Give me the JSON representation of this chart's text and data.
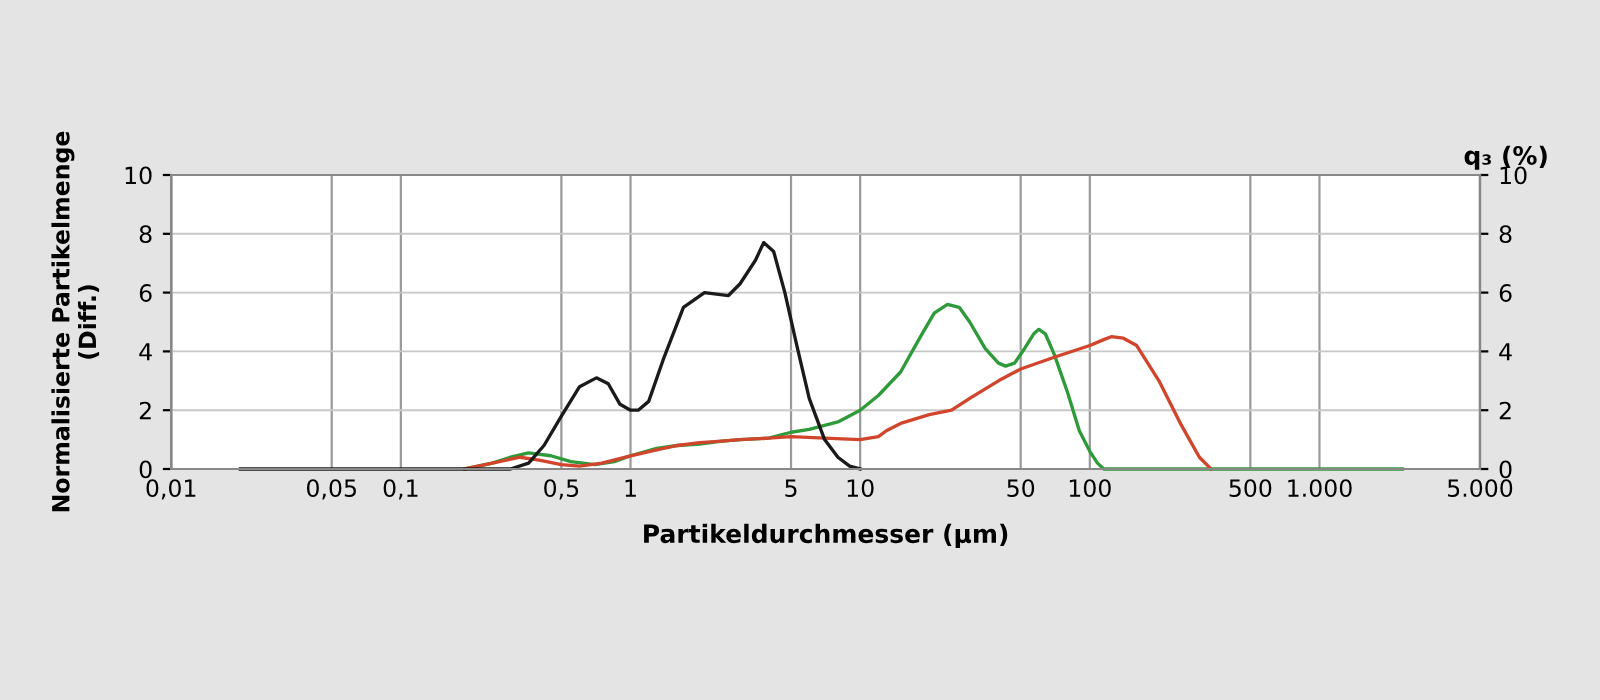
{
  "chart_data": {
    "type": "line",
    "xlabel": "Partikeldurchmesser (µm)",
    "ylabel": "Normalisierte Partikelmenge\n(Diff.)",
    "y2label": "q₃ (%)",
    "log": "x",
    "grid": true,
    "line_style": "solid",
    "xlim": [
      0.01,
      5000
    ],
    "xticks": [
      {
        "value": 0.01,
        "label": "0,01"
      },
      {
        "value": 0.05,
        "label": "0,05"
      },
      {
        "value": 0.1,
        "label": "0,1"
      },
      {
        "value": 0.5,
        "label": "0,5"
      },
      1,
      5,
      10,
      50,
      100,
      500,
      {
        "value": 1000,
        "label": "1.000"
      },
      {
        "value": 5000,
        "label": "5.000"
      }
    ],
    "ylim": [
      0,
      10
    ],
    "yticks": [
      0,
      2,
      4,
      6,
      8,
      10
    ],
    "y2lim": [
      0,
      10
    ],
    "y2ticks": [
      0,
      2,
      4,
      6,
      8,
      10
    ],
    "series": [
      {
        "color": "#2e9a3a",
        "x": [
          0.19,
          0.25,
          0.3,
          0.36,
          0.45,
          0.55,
          0.7,
          0.85,
          1.0,
          1.3,
          1.6,
          2.0,
          2.5,
          3,
          4,
          5,
          6,
          8,
          10,
          12,
          15,
          18,
          21,
          24,
          27,
          30,
          35,
          40,
          43,
          47,
          52,
          57,
          60,
          64,
          70,
          80,
          90,
          100,
          108,
          115,
          200,
          500,
          1000,
          2300
        ],
        "values": [
          0,
          0.2,
          0.4,
          0.55,
          0.45,
          0.25,
          0.15,
          0.25,
          0.45,
          0.7,
          0.8,
          0.85,
          0.95,
          1.0,
          1.05,
          1.25,
          1.35,
          1.6,
          2.0,
          2.5,
          3.3,
          4.4,
          5.3,
          5.6,
          5.5,
          5.0,
          4.1,
          3.6,
          3.5,
          3.6,
          4.1,
          4.6,
          4.75,
          4.6,
          3.9,
          2.6,
          1.3,
          0.6,
          0.2,
          0,
          0,
          0,
          0,
          0
        ]
      },
      {
        "color": "#d0452b",
        "x": [
          0.19,
          0.25,
          0.33,
          0.4,
          0.5,
          0.6,
          0.75,
          1.0,
          1.3,
          1.6,
          2.0,
          2.5,
          3,
          4,
          5,
          7,
          10,
          12,
          13,
          15,
          20,
          25,
          30,
          40,
          50,
          70,
          100,
          115,
          124,
          140,
          160,
          200,
          250,
          300,
          337
        ],
        "values": [
          0,
          0.2,
          0.4,
          0.3,
          0.15,
          0.1,
          0.2,
          0.45,
          0.65,
          0.8,
          0.9,
          0.95,
          1.0,
          1.05,
          1.1,
          1.05,
          1.0,
          1.1,
          1.3,
          1.55,
          1.85,
          2.0,
          2.4,
          3.0,
          3.4,
          3.8,
          4.2,
          4.4,
          4.5,
          4.45,
          4.2,
          3.0,
          1.5,
          0.4,
          0
        ]
      },
      {
        "color": "#1a1a1a",
        "x": [
          0.02,
          0.1,
          0.2,
          0.3,
          0.36,
          0.42,
          0.5,
          0.6,
          0.71,
          0.8,
          0.9,
          1.0,
          1.08,
          1.2,
          1.4,
          1.7,
          2.1,
          2.67,
          3.0,
          3.5,
          3.8,
          4.2,
          4.7,
          5.3,
          6,
          7,
          8,
          9,
          10
        ],
        "values": [
          0,
          0,
          0,
          0,
          0.2,
          0.8,
          1.8,
          2.8,
          3.1,
          2.9,
          2.2,
          2.0,
          2.0,
          2.3,
          3.8,
          5.5,
          6.0,
          5.9,
          6.3,
          7.1,
          7.7,
          7.4,
          6.0,
          4.2,
          2.4,
          1.0,
          0.4,
          0.1,
          0
        ]
      }
    ]
  }
}
